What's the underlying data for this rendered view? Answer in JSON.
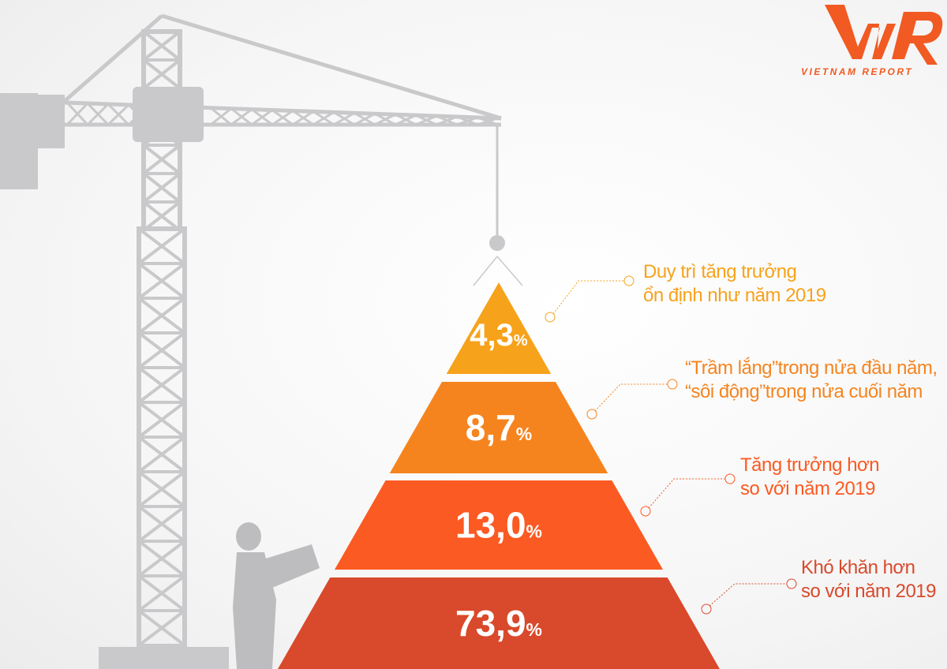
{
  "brand": {
    "logo_text": "VNR",
    "name": "VIETNAM REPORT",
    "color": "#F15A22"
  },
  "chart_data": {
    "type": "pyramid",
    "title": "",
    "unit": "%",
    "tiers": [
      {
        "value": 4.3,
        "display": "4,3",
        "label_lines": [
          "Duy trì tăng trưởng",
          "ổn định như năm 2019"
        ],
        "color": "#F7A21B"
      },
      {
        "value": 8.7,
        "display": "8,7",
        "label_lines": [
          "“Trầm lắng”trong nửa đầu năm,",
          "“sôi động”trong nửa cuối năm"
        ],
        "color": "#F5841F"
      },
      {
        "value": 13.0,
        "display": "13,0",
        "label_lines": [
          "Tăng trưởng hơn",
          "so với năm 2019"
        ],
        "color": "#FB5A22"
      },
      {
        "value": 73.9,
        "display": "73,9",
        "label_lines": [
          "Khó khăn hơn",
          "so với năm 2019"
        ],
        "color": "#D9492B"
      }
    ]
  }
}
